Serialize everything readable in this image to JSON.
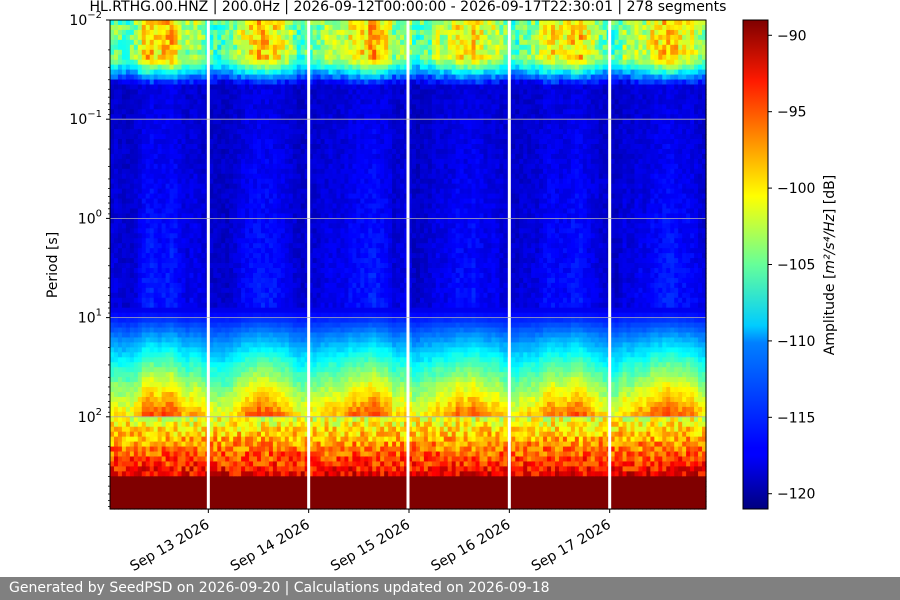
{
  "chart_data": {
    "type": "heatmap",
    "title": "HL.RTHG.00.HNZ | 200.0Hz | 2026-09-12T00:00:00 - 2026-09-17T22:30:01 | 278 segments",
    "xlabel": "",
    "ylabel": "Period [s]",
    "x_ticks": [
      "Sep 13 2026",
      "Sep 14 2026",
      "Sep 15 2026",
      "Sep 16 2026",
      "Sep 17 2026"
    ],
    "x_tick_days": [
      1,
      2,
      3,
      4,
      5
    ],
    "x_range_days": [
      0.02,
      5.96
    ],
    "x_origin_date": "2026-09-12",
    "y_scale": "log",
    "y_range": [
      0.01,
      850
    ],
    "y_inverted": true,
    "y_ticks": [
      {
        "value": 0.01,
        "base": "10",
        "exp": "−2"
      },
      {
        "value": 0.1,
        "base": "10",
        "exp": "−1"
      },
      {
        "value": 1,
        "base": "10",
        "exp": "0"
      },
      {
        "value": 10,
        "base": "10",
        "exp": "1"
      },
      {
        "value": 100,
        "base": "10",
        "exp": "2"
      }
    ],
    "grid": "horizontal",
    "data_gaps_days": [
      1.0,
      2.0,
      2.99,
      4.0,
      5.0
    ],
    "colorbar": {
      "label_main": "Amplitude [",
      "label_math": "m²/s⁴/Hz",
      "label_end": "] [dB]",
      "range": [
        -121,
        -89
      ],
      "ticks": [
        "−90",
        "−95",
        "−100",
        "−105",
        "−110",
        "−115",
        "−120"
      ],
      "tick_values": [
        -90,
        -95,
        -100,
        -105,
        -110,
        -115,
        -120
      ],
      "colormap": "jet"
    }
  },
  "footer": {
    "text": "Generated by SeedPSD on 2026-09-20 | Calculations updated on 2026-09-18"
  }
}
